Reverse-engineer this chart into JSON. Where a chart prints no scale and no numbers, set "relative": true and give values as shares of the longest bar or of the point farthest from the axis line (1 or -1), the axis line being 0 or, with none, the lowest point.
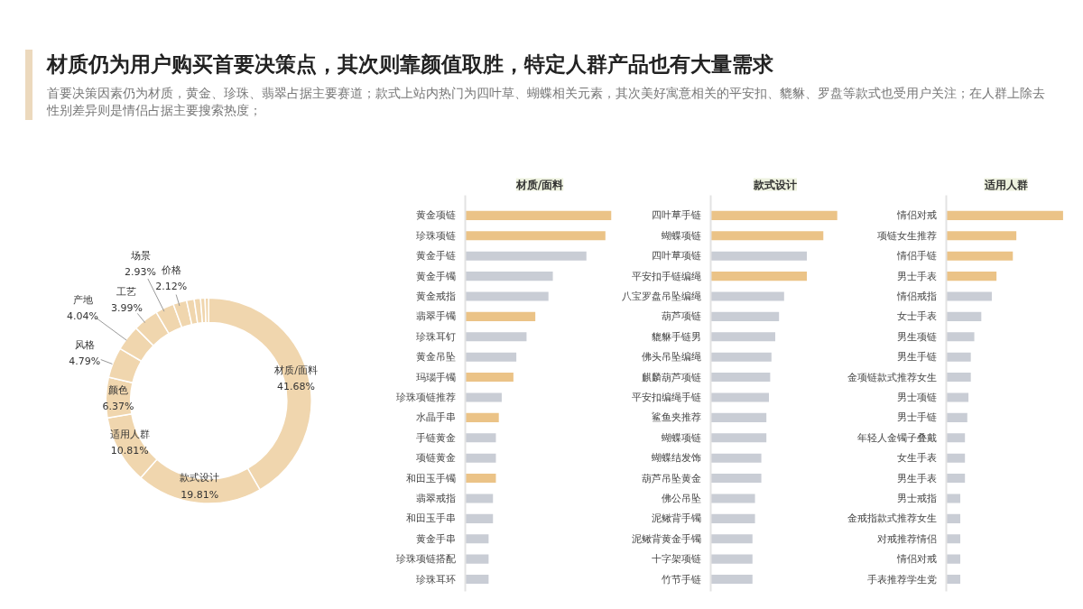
{
  "chart_data": [
    {
      "type": "donut",
      "title": "材质仍为用户购买首要决策点，其次则靠颜值取胜，特定人群产品也有大量需求",
      "subtitle": "首要决策因素仍为材质，黄金、珍珠、翡翠占据主要赛道；款式上站内热门为四叶草、蝴蝶相关元素，其次美好寓意相关的平安扣、貔貅、罗盘等款式也受用户关注；在人群上除去性别差异则是情侣占据主要搜索热度；",
      "categories": [
        "材质/面料",
        "款式设计",
        "适用人群",
        "颜色",
        "风格",
        "产地",
        "工艺",
        "场景",
        "价格",
        null,
        null,
        null,
        null
      ],
      "values": [
        41.68,
        19.81,
        10.81,
        6.37,
        4.79,
        4.04,
        3.99,
        2.93,
        2.12,
        1.2,
        1.0,
        0.7,
        0.56
      ],
      "value_labels": [
        "41.68%",
        "19.81%",
        "10.81%",
        "6.37%",
        "4.79%",
        "4.04%",
        "3.99%",
        "2.93%",
        "2.12%",
        null,
        null,
        null,
        null
      ],
      "colors": [
        "#f0d6ae",
        "#f0d6ae",
        "#f0d6ae",
        "#f0d6ae",
        "#f0d6ae",
        "#f0d6ae",
        "#f0d6ae",
        "#f0d6ae",
        "#f0d6ae",
        "#f0d6ae",
        "#f0d6ae",
        "#f0d6ae",
        "#f0d6ae"
      ]
    },
    {
      "type": "bar",
      "orientation": "horizontal",
      "relative": true,
      "title": "材质/面料",
      "categories": [
        "黄金项链",
        "珍珠项链",
        "黄金手链",
        "黄金手镯",
        "黄金戒指",
        "翡翠手镯",
        "珍珠耳钉",
        "黄金吊坠",
        "玛瑙手镯",
        "珍珠项链推荐",
        "水晶手串",
        "手链黄金",
        "项链黄金",
        "和田玉手镯",
        "翡翠戒指",
        "和田玉手串",
        "黄金手串",
        "珍珠项链搭配",
        "珍珠耳环"
      ],
      "values": [
        1,
        0.96,
        0.83,
        0.6,
        0.57,
        0.48,
        0.42,
        0.35,
        0.33,
        0.25,
        0.23,
        0.21,
        0.21,
        0.21,
        0.19,
        0.19,
        0.16,
        0.16,
        0.16
      ],
      "colors": [
        "#ebc387",
        "#ebc387",
        "#c9cdd5",
        "#c9cdd5",
        "#c9cdd5",
        "#ebc387",
        "#c9cdd5",
        "#c9cdd5",
        "#ebc387",
        "#c9cdd5",
        "#ebc387",
        "#c9cdd5",
        "#c9cdd5",
        "#ebc387",
        "#c9cdd5",
        "#c9cdd5",
        "#c9cdd5",
        "#c9cdd5",
        "#c9cdd5"
      ]
    },
    {
      "type": "bar",
      "orientation": "horizontal",
      "relative": true,
      "title": "款式设计",
      "categories": [
        "四叶草手链",
        "蝴蝶项链",
        "四叶草项链",
        "平安扣手链编绳",
        "八宝罗盘吊坠编绳",
        "葫芦项链",
        "貔貅手链男",
        "佛头吊坠编绳",
        "麒麟葫芦项链",
        "平安扣编绳手链",
        "鲨鱼夹推荐",
        "蝴蝶项链",
        "蝴蝶结发饰",
        "葫芦吊坠黄金",
        "佛公吊坠",
        "泥鳅背手镯",
        "泥鳅背黄金手镯",
        "十字架项链",
        "竹节手链"
      ],
      "values": [
        1,
        0.89,
        0.76,
        0.76,
        0.58,
        0.54,
        0.51,
        0.48,
        0.47,
        0.46,
        0.44,
        0.44,
        0.4,
        0.4,
        0.35,
        0.35,
        0.33,
        0.33,
        0.33
      ],
      "colors": [
        "#ebc387",
        "#ebc387",
        "#c9cdd5",
        "#ebc387",
        "#c9cdd5",
        "#c9cdd5",
        "#c9cdd5",
        "#c9cdd5",
        "#c9cdd5",
        "#c9cdd5",
        "#c9cdd5",
        "#c9cdd5",
        "#c9cdd5",
        "#c9cdd5",
        "#c9cdd5",
        "#c9cdd5",
        "#c9cdd5",
        "#c9cdd5",
        "#c9cdd5"
      ]
    },
    {
      "type": "bar",
      "orientation": "horizontal",
      "relative": true,
      "title": "适用人群",
      "categories": [
        "情侣对戒",
        "项链女生推荐",
        "情侣手链",
        "男士手表",
        "情侣戒指",
        "女士手表",
        "男生项链",
        "男生手链",
        "金项链款式推荐女生",
        "男士项链",
        "男士手链",
        "年轻人金镯子叠戴",
        "女生手表",
        "男生手表",
        "男士戒指",
        "金戒指款式推荐女生",
        "对戒推荐情侣",
        "情侣对戒",
        "手表推荐学生党"
      ],
      "values": [
        1,
        0.6,
        0.57,
        0.43,
        0.39,
        0.3,
        0.24,
        0.21,
        0.21,
        0.19,
        0.18,
        0.16,
        0.16,
        0.16,
        0.12,
        0.12,
        0.12,
        0.12,
        0.12
      ],
      "colors": [
        "#ebc387",
        "#ebc387",
        "#ebc387",
        "#ebc387",
        "#c9cdd5",
        "#c9cdd5",
        "#c9cdd5",
        "#c9cdd5",
        "#c9cdd5",
        "#c9cdd5",
        "#c9cdd5",
        "#c9cdd5",
        "#c9cdd5",
        "#c9cdd5",
        "#c9cdd5",
        "#c9cdd5",
        "#c9cdd5",
        "#c9cdd5",
        "#c9cdd5"
      ]
    }
  ]
}
